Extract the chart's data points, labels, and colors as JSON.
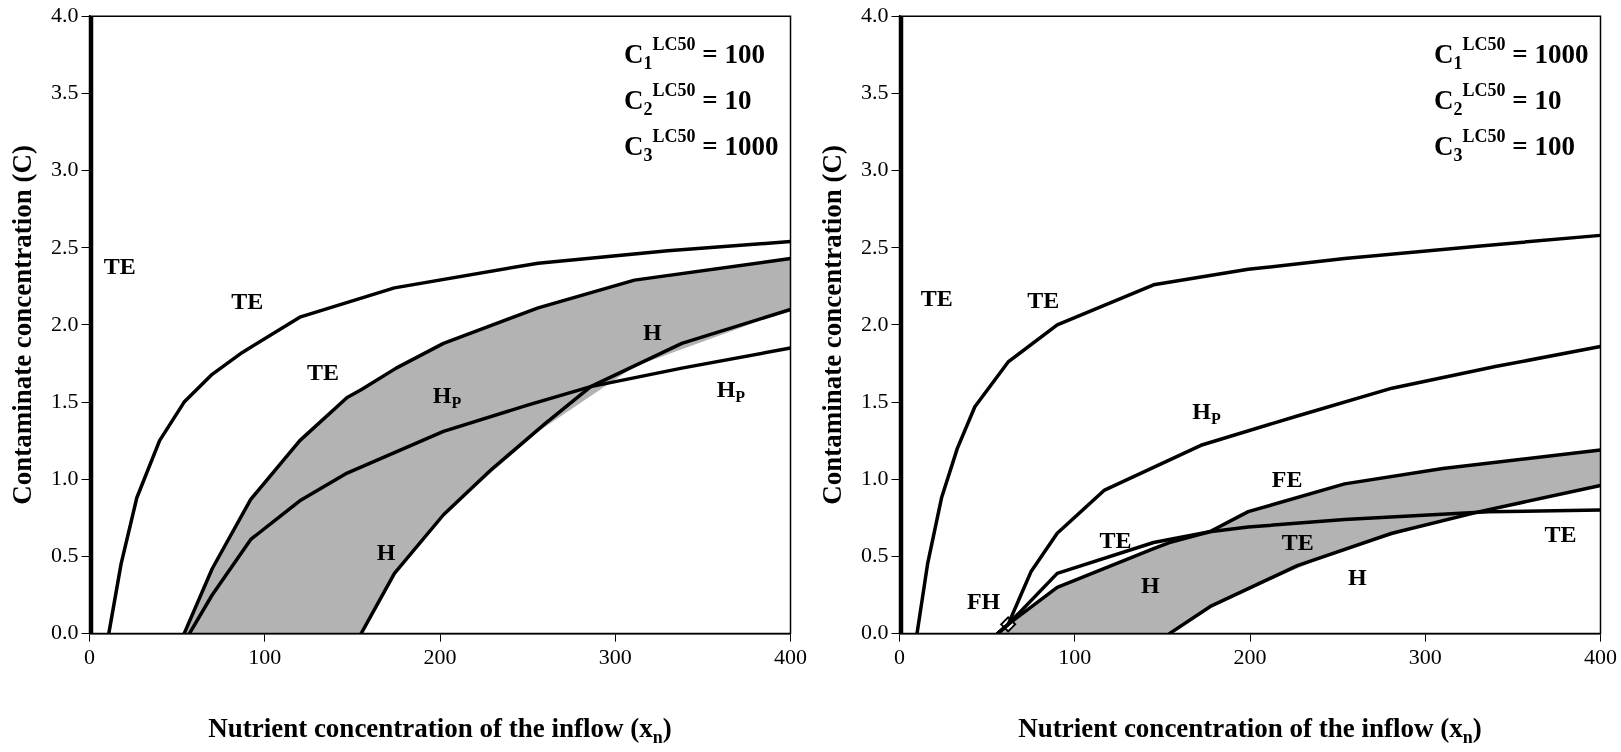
{
  "chart_data": [
    {
      "type": "line",
      "xlabel": "Nutrient concentration of the inflow (x$_{n}$)",
      "ylabel": "Contaminate concentration (C)",
      "xlim": [
        0,
        400
      ],
      "xticks": [
        0,
        100,
        200,
        300,
        400
      ],
      "ylim": [
        0,
        4
      ],
      "yticks": [
        {
          "value": 0,
          "label": "0.0"
        },
        {
          "value": 0.5,
          "label": "0.5"
        },
        {
          "value": 1,
          "label": "1.0"
        },
        {
          "value": 1.5,
          "label": "1.5"
        },
        {
          "value": 2,
          "label": "2.0"
        },
        {
          "value": 2.5,
          "label": "2.5"
        },
        {
          "value": 3,
          "label": "3.0"
        },
        {
          "value": 3.5,
          "label": "3.5"
        },
        {
          "value": 4,
          "label": "4.0"
        }
      ],
      "grid": false,
      "legend": false,
      "marker": "none",
      "ref_lines": [
        {
          "axis": "x",
          "value": 1,
          "color": "#000000"
        }
      ],
      "series": [
        {
          "color": "#000000",
          "x": [
            11,
            18,
            27,
            40,
            54,
            70,
            87,
            120,
            174,
            256,
            330,
            400
          ],
          "values": [
            0,
            0.45,
            0.88,
            1.25,
            1.5,
            1.68,
            1.82,
            2.05,
            2.24,
            2.4,
            2.48,
            2.54
          ]
        },
        {
          "color": "#000000",
          "x": [
            54,
            70,
            92,
            120,
            147,
            155,
            175,
            202,
            256,
            311,
            400
          ],
          "values": [
            0,
            0.42,
            0.87,
            1.25,
            1.53,
            1.58,
            1.72,
            1.88,
            2.11,
            2.29,
            2.43
          ],
          "lower": [
            0,
            0,
            0,
            0,
            0,
            0,
            0.39,
            0.77,
            1.31,
            1.73,
            2.1
          ],
          "upper": [
            0,
            0.42,
            0.87,
            1.25,
            1.53,
            1.58,
            1.72,
            1.88,
            2.11,
            2.29,
            2.43
          ]
        },
        {
          "color": "#000000",
          "x": [
            57,
            70,
            92,
            120,
            147,
            202,
            250,
            286,
            338,
            400
          ],
          "values": [
            0,
            0.25,
            0.61,
            0.86,
            1.04,
            1.31,
            1.48,
            1.6,
            1.72,
            1.85
          ]
        },
        {
          "color": "#000000",
          "x": [
            155,
            174,
            202,
            229,
            260,
            286,
            338,
            400
          ],
          "values": [
            0,
            0.39,
            0.77,
            1.06,
            1.36,
            1.6,
            1.88,
            2.1
          ]
        }
      ],
      "annotations": [
        "C$_{1}$$^{LC50}$ = 100",
        "C$_{2}$$^{LC50}$ = 10",
        "C$_{3}$$^{LC50}$ = 1000",
        "TE",
        "TE",
        "TE",
        "H$_{P}$",
        "H",
        "H$_{P}$",
        "H"
      ]
    },
    {
      "type": "line",
      "xlabel": "Nutrient concentration of the inflow (x$_{n}$)",
      "ylabel": "Contaminate concentration (C)",
      "xlim": [
        0,
        400
      ],
      "xticks": [
        0,
        100,
        200,
        300,
        400
      ],
      "ylim": [
        0,
        4
      ],
      "yticks": [
        {
          "value": 0,
          "label": "0.0"
        },
        {
          "value": 0.5,
          "label": "0.5"
        },
        {
          "value": 1,
          "label": "1.0"
        },
        {
          "value": 1.5,
          "label": "1.5"
        },
        {
          "value": 2,
          "label": "2.0"
        },
        {
          "value": 2.5,
          "label": "2.5"
        },
        {
          "value": 3,
          "label": "3.0"
        },
        {
          "value": 3.5,
          "label": "3.5"
        },
        {
          "value": 4,
          "label": "4.0"
        }
      ],
      "grid": false,
      "legend": false,
      "marker": "none",
      "ref_lines": [
        {
          "axis": "x",
          "value": 1,
          "color": "#000000"
        }
      ],
      "series": [
        {
          "color": "#000000",
          "x": [
            10,
            16,
            24,
            33,
            43,
            62,
            90,
            145,
            199,
            254,
            330,
            400
          ],
          "values": [
            0,
            0.45,
            0.88,
            1.2,
            1.47,
            1.76,
            2.0,
            2.26,
            2.36,
            2.43,
            2.51,
            2.58
          ]
        },
        {
          "color": "#000000",
          "x": [
            56,
            62,
            75,
            90,
            117,
            172,
            227,
            281,
            340,
            400
          ],
          "values": [
            0,
            0.06,
            0.4,
            0.65,
            0.93,
            1.22,
            1.41,
            1.59,
            1.73,
            1.86
          ]
        },
        {
          "color": "#000000",
          "x": [
            56,
            62,
            90,
            145,
            177,
            199,
            254,
            336,
            400
          ],
          "values": [
            0,
            0.06,
            0.39,
            0.59,
            0.66,
            0.69,
            0.74,
            0.79,
            0.8
          ]
        },
        {
          "color": "#000000",
          "x": [
            56,
            62,
            90,
            145,
            154,
            177,
            199,
            254,
            310,
            400
          ],
          "values": [
            0,
            0.06,
            0.3,
            0.55,
            0.59,
            0.66,
            0.79,
            0.97,
            1.07,
            1.19
          ],
          "lower": [
            0,
            0,
            0,
            0,
            0,
            0.18,
            0.29,
            0.55,
            0.73,
            0.96
          ],
          "upper": [
            0,
            0.06,
            0.3,
            0.55,
            0.59,
            0.66,
            0.79,
            0.97,
            1.07,
            1.19
          ]
        },
        {
          "color": "#000000",
          "x": [
            154,
            178,
            227,
            281,
            331,
            400
          ],
          "values": [
            0,
            0.18,
            0.44,
            0.65,
            0.79,
            0.96
          ]
        },
        {
          "type": "scatter",
          "color": "#ffffff",
          "marker": "diamond",
          "x": [
            62
          ],
          "values": [
            0.06
          ]
        }
      ],
      "annotations": [
        "C$_{1}$$^{LC50}$ = 1000",
        "C$_{2}$$^{LC50}$ = 10",
        "C$_{3}$$^{LC50}$ = 100",
        "TE",
        "TE",
        "H$_{P}$",
        "FE",
        "TE",
        "TE",
        "TE",
        "H",
        "H",
        "FH"
      ]
    }
  ]
}
